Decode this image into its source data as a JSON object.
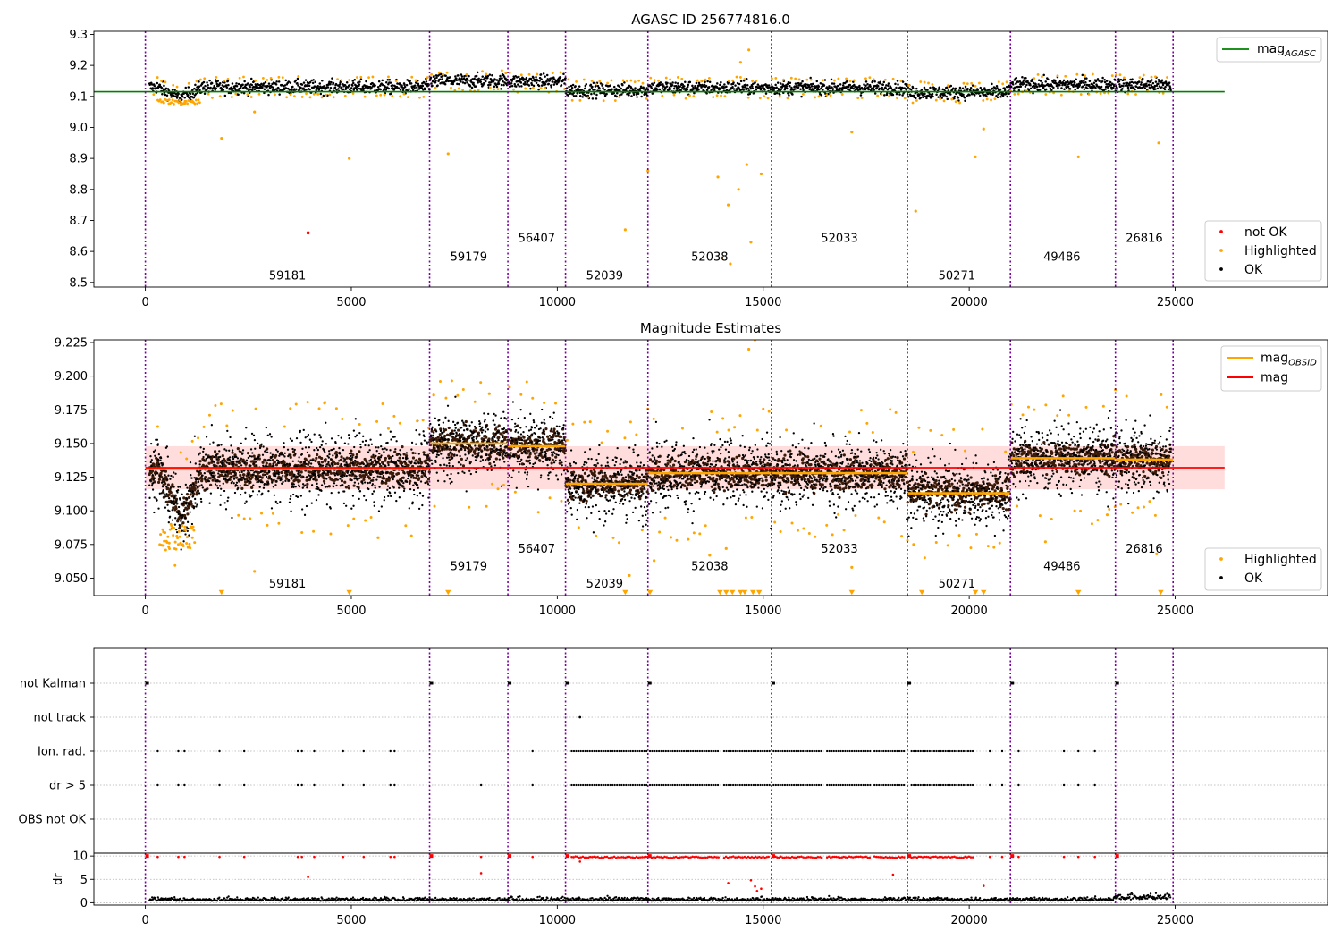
{
  "chart_data": [
    {
      "type": "scatter",
      "title": "AGASC ID 256774816.0",
      "xlim": [
        -1250,
        28700
      ],
      "ylim": [
        8.485,
        9.31
      ],
      "x_ticks": [
        0,
        5000,
        10000,
        15000,
        20000,
        25000
      ],
      "y_ticks": [
        8.5,
        8.6,
        8.7,
        8.8,
        8.9,
        9.0,
        9.1,
        9.2,
        9.3
      ],
      "y_tick_labels": [
        "8.5",
        "8.6",
        "8.7",
        "8.8",
        "8.9",
        "9.0",
        "9.1",
        "9.2",
        "9.3"
      ],
      "obs_boundaries": [
        0,
        6900,
        8800,
        10200,
        12200,
        15200,
        18500,
        21000,
        23550,
        24950
      ],
      "segments": [
        {
          "obsid": "59181",
          "x": [
            0,
            6900
          ],
          "level": 9.13
        },
        {
          "obsid": "59179",
          "x": [
            6900,
            8800
          ],
          "level": 9.15
        },
        {
          "obsid": "56407",
          "x": [
            8800,
            10200
          ],
          "level": 9.148
        },
        {
          "obsid": "52039",
          "x": [
            10200,
            12200
          ],
          "level": 9.12
        },
        {
          "obsid": "52038",
          "x": [
            12200,
            15200
          ],
          "level": 9.128
        },
        {
          "obsid": "52033",
          "x": [
            15200,
            18500
          ],
          "level": 9.128
        },
        {
          "obsid": "50271",
          "x": [
            18500,
            21000
          ],
          "level": 9.113
        },
        {
          "obsid": "49486",
          "x": [
            21000,
            23550
          ],
          "level": 9.138
        },
        {
          "obsid": "26816",
          "x": [
            23550,
            24950
          ],
          "level": 9.137
        }
      ],
      "obsid_label_positions": [
        {
          "text": "59181",
          "x": 3450,
          "y": 8.51
        },
        {
          "text": "59179",
          "x": 7850,
          "y": 8.57
        },
        {
          "text": "56407",
          "x": 9500,
          "y": 8.63
        },
        {
          "text": "52039",
          "x": 11150,
          "y": 8.51
        },
        {
          "text": "52038",
          "x": 13700,
          "y": 8.57
        },
        {
          "text": "52033",
          "x": 16850,
          "y": 8.63
        },
        {
          "text": "50271",
          "x": 19700,
          "y": 8.51
        },
        {
          "text": "49486",
          "x": 22250,
          "y": 8.57
        },
        {
          "text": "26816",
          "x": 24250,
          "y": 8.63
        }
      ],
      "reference_line": {
        "name": "mag_AGASC",
        "value": 9.115,
        "x": [
          -1250,
          26200
        ],
        "color": "#008000"
      },
      "highlighted_outliers": [
        [
          1850,
          8.965
        ],
        [
          2650,
          9.05
        ],
        [
          4950,
          8.9
        ],
        [
          7350,
          8.915
        ],
        [
          11650,
          8.67
        ],
        [
          12200,
          8.86
        ],
        [
          13900,
          8.84
        ],
        [
          14150,
          8.75
        ],
        [
          14200,
          8.56
        ],
        [
          14400,
          8.8
        ],
        [
          14600,
          8.88
        ],
        [
          14700,
          8.63
        ],
        [
          14950,
          8.85
        ],
        [
          17150,
          8.985
        ],
        [
          18700,
          8.73
        ],
        [
          20150,
          8.905
        ],
        [
          20350,
          8.995
        ],
        [
          22650,
          8.905
        ],
        [
          24600,
          8.95
        ],
        [
          14000,
          8.58
        ],
        [
          14450,
          9.21
        ],
        [
          14650,
          9.25
        ]
      ],
      "not_ok_points": [
        [
          3950,
          8.66
        ]
      ],
      "legend_top": [
        {
          "label": "mag",
          "subscript": "AGASC",
          "color": "#008000"
        }
      ],
      "legend_bottom": [
        {
          "label": "not OK",
          "color": "#ff0000"
        },
        {
          "label": "Highlighted",
          "color": "#ffa500"
        },
        {
          "label": "OK",
          "color": "#000000"
        }
      ]
    },
    {
      "type": "scatter",
      "title": "Magnitude Estimates",
      "xlim": [
        -1250,
        28700
      ],
      "ylim": [
        9.037,
        9.227
      ],
      "x_ticks": [
        0,
        5000,
        10000,
        15000,
        20000,
        25000
      ],
      "y_ticks": [
        9.05,
        9.075,
        9.1,
        9.125,
        9.15,
        9.175,
        9.2,
        9.225
      ],
      "y_tick_labels": [
        "9.050",
        "9.075",
        "9.100",
        "9.125",
        "9.150",
        "9.175",
        "9.200",
        "9.225"
      ],
      "mag_line": {
        "name": "mag",
        "value": 9.132,
        "band": [
          9.116,
          9.148
        ],
        "x": [
          0,
          26200
        ],
        "color": "#ff0000"
      },
      "obsid_mag_levels": [
        {
          "x": [
            0,
            6900
          ],
          "value": 9.131
        },
        {
          "x": [
            6900,
            8800
          ],
          "value": 9.15
        },
        {
          "x": [
            8800,
            10200
          ],
          "value": 9.148
        },
        {
          "x": [
            10200,
            12200
          ],
          "value": 9.12
        },
        {
          "x": [
            12200,
            15200
          ],
          "value": 9.128
        },
        {
          "x": [
            15200,
            18500
          ],
          "value": 9.128
        },
        {
          "x": [
            18500,
            21000
          ],
          "value": 9.113
        },
        {
          "x": [
            21000,
            23550
          ],
          "value": 9.139
        },
        {
          "x": [
            23550,
            24950
          ],
          "value": 9.138
        }
      ],
      "obsid_label_positions": [
        {
          "text": "59181",
          "x": 3450,
          "y": 9.043
        },
        {
          "text": "59179",
          "x": 7850,
          "y": 9.056
        },
        {
          "text": "56407",
          "x": 9500,
          "y": 9.069
        },
        {
          "text": "52039",
          "x": 11150,
          "y": 9.043
        },
        {
          "text": "52038",
          "x": 13700,
          "y": 9.056
        },
        {
          "text": "52033",
          "x": 16850,
          "y": 9.069
        },
        {
          "text": "50271",
          "x": 19700,
          "y": 9.043
        },
        {
          "text": "49486",
          "x": 22250,
          "y": 9.056
        },
        {
          "text": "26816",
          "x": 24250,
          "y": 9.069
        }
      ],
      "clipped_low_markers_x": [
        1850,
        4950,
        7350,
        11650,
        12250,
        13950,
        14100,
        14250,
        14450,
        14550,
        14750,
        14900,
        17150,
        18850,
        20150,
        20350,
        22650,
        24650
      ],
      "highlighted_outliers": [
        [
          2650,
          9.055
        ],
        [
          5650,
          9.08
        ],
        [
          4350,
          9.18
        ],
        [
          11750,
          9.052
        ],
        [
          12350,
          9.063
        ],
        [
          13700,
          9.067
        ],
        [
          14100,
          9.072
        ],
        [
          14650,
          9.22
        ],
        [
          14800,
          9.227
        ],
        [
          17150,
          9.058
        ],
        [
          18650,
          9.075
        ],
        [
          21850,
          9.077
        ],
        [
          23350,
          9.097
        ],
        [
          24550,
          9.068
        ],
        [
          23550,
          9.19
        ],
        [
          8350,
          9.187
        ],
        [
          7000,
          9.186
        ]
      ],
      "legend_top": [
        {
          "label": "mag",
          "subscript": "OBSID",
          "color": "#ffa500"
        },
        {
          "label": "mag",
          "subscript": "",
          "color": "#ff0000"
        }
      ],
      "legend_bottom": [
        {
          "label": "Highlighted",
          "color": "#ffa500"
        },
        {
          "label": "OK",
          "color": "#000000"
        }
      ]
    },
    {
      "type": "scatter",
      "title": "",
      "xlim": [
        -1250,
        28700
      ],
      "flag_categories": [
        "not Kalman",
        "not track",
        "Ion. rad.",
        "dr > 5",
        "OBS not OK"
      ],
      "x_ticks": [
        0,
        5000,
        10000,
        15000,
        20000,
        25000
      ],
      "not_kalman_x": [
        0,
        6900,
        8800,
        10200,
        12200,
        15200,
        18500,
        21000,
        23550
      ],
      "not_track_x": [
        10550
      ],
      "ion_rad_sparse_x": [
        300,
        800,
        950,
        1800,
        2400,
        3700,
        3800,
        4100,
        4800,
        5300,
        5950,
        6050,
        9400,
        20500,
        20800,
        21200,
        22300,
        22650,
        23050
      ],
      "ion_rad_dense_ranges": [
        [
          10350,
          12200
        ],
        [
          12250,
          13950
        ],
        [
          14050,
          15150
        ],
        [
          15250,
          16450
        ],
        [
          16550,
          17600
        ],
        [
          17700,
          18450
        ],
        [
          18600,
          20100
        ]
      ],
      "dr_sparse_x": [
        300,
        800,
        950,
        1800,
        2400,
        3700,
        3800,
        4100,
        4800,
        5300,
        5950,
        6050,
        8150,
        9400,
        20500,
        20800,
        21200,
        22300,
        22650,
        23050
      ],
      "dr_dense_ranges": [
        [
          10350,
          12200
        ],
        [
          12250,
          13950
        ],
        [
          14050,
          15150
        ],
        [
          15250,
          16450
        ],
        [
          16550,
          17600
        ],
        [
          17700,
          18450
        ],
        [
          18600,
          20100
        ]
      ]
    },
    {
      "type": "scatter",
      "title": "",
      "xlim": [
        -1250,
        28700
      ],
      "ylim": [
        -0.5,
        10.6
      ],
      "ylabel": "dr",
      "y_ticks": [
        0,
        5,
        10
      ],
      "y_tick_labels": [
        "0",
        "5",
        "10"
      ],
      "x_ticks": [
        0,
        5000,
        10000,
        15000,
        20000,
        25000
      ],
      "x_tick_labels": [
        "0",
        "5000",
        "10000",
        "15000",
        "20000",
        "25000"
      ],
      "red_extra_points": [
        [
          3950,
          5.5
        ],
        [
          8150,
          6.3
        ],
        [
          10550,
          8.8
        ],
        [
          14150,
          4.2
        ],
        [
          14700,
          4.8
        ],
        [
          14800,
          3.5
        ],
        [
          14950,
          3.0
        ],
        [
          14850,
          2.5
        ],
        [
          18150,
          6.0
        ],
        [
          20350,
          3.6
        ]
      ]
    }
  ]
}
